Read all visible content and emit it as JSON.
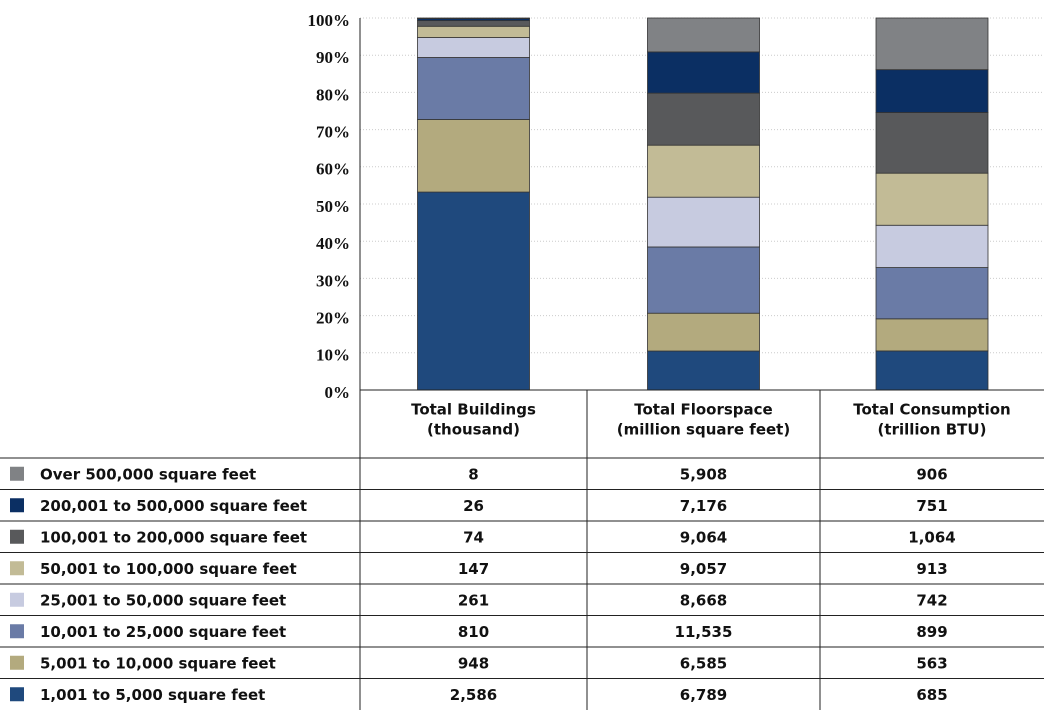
{
  "chart_data": {
    "type": "bar",
    "stack": "percent",
    "categories": [
      "Total Buildings",
      "Total Floorspace",
      "Total Consumption"
    ],
    "category_units": [
      "(thousand)",
      "(million square feet)",
      "(trillion BTU)"
    ],
    "series": [
      {
        "name": "Over 500,000 square feet",
        "color": "#808285",
        "values": [
          8,
          5908,
          906
        ],
        "value_labels": [
          "8",
          "5,908",
          "906"
        ]
      },
      {
        "name": "200,001 to 500,000 square feet",
        "color": "#0b2f63",
        "values": [
          26,
          7176,
          751
        ],
        "value_labels": [
          "26",
          "7,176",
          "751"
        ]
      },
      {
        "name": "100,001 to 200,000 square feet",
        "color": "#58595b",
        "values": [
          74,
          9064,
          1064
        ],
        "value_labels": [
          "74",
          "9,064",
          "1,064"
        ]
      },
      {
        "name": "50,001 to 100,000 square feet",
        "color": "#c2bb96",
        "values": [
          147,
          9057,
          913
        ],
        "value_labels": [
          "147",
          "9,057",
          "913"
        ]
      },
      {
        "name": "25,001 to 50,000 square feet",
        "color": "#c7cbe0",
        "values": [
          261,
          8668,
          742
        ],
        "value_labels": [
          "261",
          "8,668",
          "742"
        ]
      },
      {
        "name": "10,001 to 25,000 square feet",
        "color": "#6a7ba6",
        "values": [
          810,
          11535,
          899
        ],
        "value_labels": [
          "810",
          "11,535",
          "899"
        ]
      },
      {
        "name": "5,001 to 10,000 square feet",
        "color": "#b3aa7e",
        "values": [
          948,
          6585,
          563
        ],
        "value_labels": [
          "948",
          "6,585",
          "563"
        ]
      },
      {
        "name": "1,001 to 5,000 square feet",
        "color": "#1f497d",
        "values": [
          2586,
          6789,
          685
        ],
        "value_labels": [
          "2,586",
          "6,789",
          "685"
        ]
      }
    ],
    "ylim": [
      0,
      100
    ],
    "yticks": [
      {
        "value": 0,
        "label": "0%"
      },
      {
        "value": 10,
        "label": "10%"
      },
      {
        "value": 20,
        "label": "20%"
      },
      {
        "value": 30,
        "label": "30%"
      },
      {
        "value": 40,
        "label": "40%"
      },
      {
        "value": 50,
        "label": "50%"
      },
      {
        "value": 60,
        "label": "60%"
      },
      {
        "value": 70,
        "label": "70%"
      },
      {
        "value": 80,
        "label": "80%"
      },
      {
        "value": 90,
        "label": "90%"
      },
      {
        "value": 100,
        "label": "100%"
      }
    ],
    "grid": true
  }
}
